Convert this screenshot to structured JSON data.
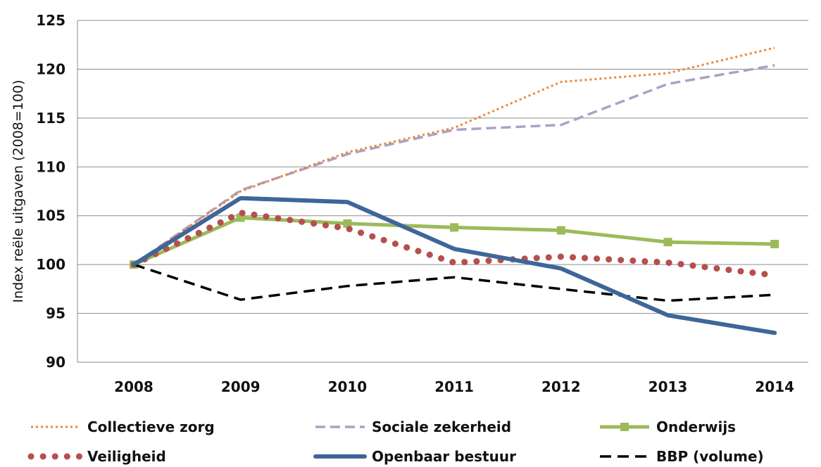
{
  "chart_data": {
    "type": "line",
    "title": "",
    "xlabel": "",
    "ylabel": "Index reële uitgaven (2008=100)",
    "x": [
      "2008",
      "2009",
      "2010",
      "2011",
      "2012",
      "2013",
      "2014"
    ],
    "ylim": [
      90,
      125
    ],
    "yticks": [
      "90",
      "95",
      "100",
      "105",
      "110",
      "115",
      "120",
      "125"
    ],
    "grid": "horizontal",
    "legend_position": "bottom",
    "series": [
      {
        "name": "Collectieve zorg",
        "values": [
          100,
          107.5,
          111.5,
          114,
          118.7,
          119.6,
          122.2
        ],
        "color": "#E8873A",
        "style": "dotted"
      },
      {
        "name": "Sociale zekerheid",
        "values": [
          100,
          107.6,
          111.3,
          113.8,
          114.3,
          118.5,
          120.4
        ],
        "color": "#A9A2C8",
        "style": "dashed"
      },
      {
        "name": "Onderwijs",
        "values": [
          100,
          104.8,
          104.2,
          103.8,
          103.5,
          102.3,
          102.1
        ],
        "color": "#9BBB59",
        "style": "solid-square"
      },
      {
        "name": "Veiligheid",
        "values": [
          100,
          105.3,
          103.7,
          100.2,
          100.8,
          100.2,
          98.9
        ],
        "color": "#B5504C",
        "style": "round-dots"
      },
      {
        "name": "Openbaar bestuur",
        "values": [
          100,
          106.8,
          106.4,
          101.6,
          99.6,
          94.8,
          93
        ],
        "color": "#3E6699",
        "style": "solid-thick"
      },
      {
        "name": "BBP (volume)",
        "values": [
          100,
          96.4,
          97.8,
          98.7,
          97.5,
          96.3,
          96.9
        ],
        "color": "#000000",
        "style": "long-dash"
      }
    ]
  }
}
